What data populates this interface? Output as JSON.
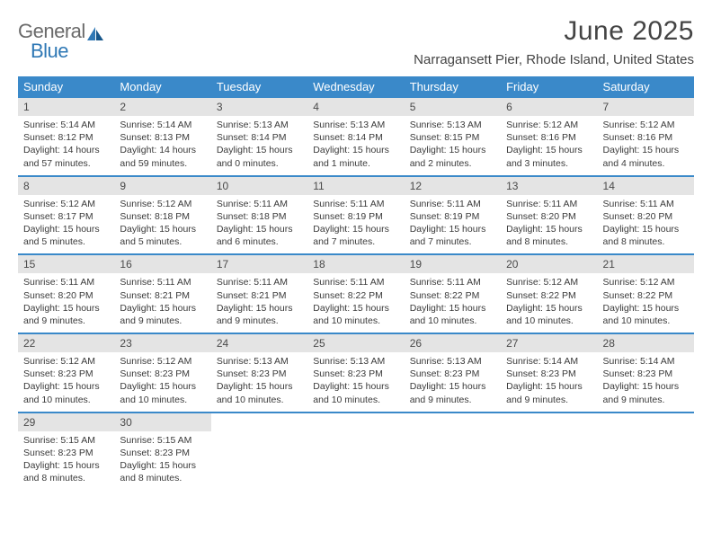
{
  "brand": {
    "part1": "General",
    "part2": "Blue"
  },
  "title": "June 2025",
  "location": "Narragansett Pier, Rhode Island, United States",
  "colors": {
    "header_bg": "#3a89c9",
    "daynum_bg": "#e4e4e4",
    "row_border": "#3a89c9",
    "text": "#3a3a3a",
    "logo_gray": "#6a6a6a",
    "logo_blue": "#2f78b5"
  },
  "weekdays": [
    "Sunday",
    "Monday",
    "Tuesday",
    "Wednesday",
    "Thursday",
    "Friday",
    "Saturday"
  ],
  "weeks": [
    [
      {
        "n": "1",
        "sr": "5:14 AM",
        "ss": "8:12 PM",
        "dl": "14 hours and 57 minutes."
      },
      {
        "n": "2",
        "sr": "5:14 AM",
        "ss": "8:13 PM",
        "dl": "14 hours and 59 minutes."
      },
      {
        "n": "3",
        "sr": "5:13 AM",
        "ss": "8:14 PM",
        "dl": "15 hours and 0 minutes."
      },
      {
        "n": "4",
        "sr": "5:13 AM",
        "ss": "8:14 PM",
        "dl": "15 hours and 1 minute."
      },
      {
        "n": "5",
        "sr": "5:13 AM",
        "ss": "8:15 PM",
        "dl": "15 hours and 2 minutes."
      },
      {
        "n": "6",
        "sr": "5:12 AM",
        "ss": "8:16 PM",
        "dl": "15 hours and 3 minutes."
      },
      {
        "n": "7",
        "sr": "5:12 AM",
        "ss": "8:16 PM",
        "dl": "15 hours and 4 minutes."
      }
    ],
    [
      {
        "n": "8",
        "sr": "5:12 AM",
        "ss": "8:17 PM",
        "dl": "15 hours and 5 minutes."
      },
      {
        "n": "9",
        "sr": "5:12 AM",
        "ss": "8:18 PM",
        "dl": "15 hours and 5 minutes."
      },
      {
        "n": "10",
        "sr": "5:11 AM",
        "ss": "8:18 PM",
        "dl": "15 hours and 6 minutes."
      },
      {
        "n": "11",
        "sr": "5:11 AM",
        "ss": "8:19 PM",
        "dl": "15 hours and 7 minutes."
      },
      {
        "n": "12",
        "sr": "5:11 AM",
        "ss": "8:19 PM",
        "dl": "15 hours and 7 minutes."
      },
      {
        "n": "13",
        "sr": "5:11 AM",
        "ss": "8:20 PM",
        "dl": "15 hours and 8 minutes."
      },
      {
        "n": "14",
        "sr": "5:11 AM",
        "ss": "8:20 PM",
        "dl": "15 hours and 8 minutes."
      }
    ],
    [
      {
        "n": "15",
        "sr": "5:11 AM",
        "ss": "8:20 PM",
        "dl": "15 hours and 9 minutes."
      },
      {
        "n": "16",
        "sr": "5:11 AM",
        "ss": "8:21 PM",
        "dl": "15 hours and 9 minutes."
      },
      {
        "n": "17",
        "sr": "5:11 AM",
        "ss": "8:21 PM",
        "dl": "15 hours and 9 minutes."
      },
      {
        "n": "18",
        "sr": "5:11 AM",
        "ss": "8:22 PM",
        "dl": "15 hours and 10 minutes."
      },
      {
        "n": "19",
        "sr": "5:11 AM",
        "ss": "8:22 PM",
        "dl": "15 hours and 10 minutes."
      },
      {
        "n": "20",
        "sr": "5:12 AM",
        "ss": "8:22 PM",
        "dl": "15 hours and 10 minutes."
      },
      {
        "n": "21",
        "sr": "5:12 AM",
        "ss": "8:22 PM",
        "dl": "15 hours and 10 minutes."
      }
    ],
    [
      {
        "n": "22",
        "sr": "5:12 AM",
        "ss": "8:23 PM",
        "dl": "15 hours and 10 minutes."
      },
      {
        "n": "23",
        "sr": "5:12 AM",
        "ss": "8:23 PM",
        "dl": "15 hours and 10 minutes."
      },
      {
        "n": "24",
        "sr": "5:13 AM",
        "ss": "8:23 PM",
        "dl": "15 hours and 10 minutes."
      },
      {
        "n": "25",
        "sr": "5:13 AM",
        "ss": "8:23 PM",
        "dl": "15 hours and 10 minutes."
      },
      {
        "n": "26",
        "sr": "5:13 AM",
        "ss": "8:23 PM",
        "dl": "15 hours and 9 minutes."
      },
      {
        "n": "27",
        "sr": "5:14 AM",
        "ss": "8:23 PM",
        "dl": "15 hours and 9 minutes."
      },
      {
        "n": "28",
        "sr": "5:14 AM",
        "ss": "8:23 PM",
        "dl": "15 hours and 9 minutes."
      }
    ],
    [
      {
        "n": "29",
        "sr": "5:15 AM",
        "ss": "8:23 PM",
        "dl": "15 hours and 8 minutes."
      },
      {
        "n": "30",
        "sr": "5:15 AM",
        "ss": "8:23 PM",
        "dl": "15 hours and 8 minutes."
      },
      null,
      null,
      null,
      null,
      null
    ]
  ],
  "labels": {
    "sunrise": "Sunrise:",
    "sunset": "Sunset:",
    "daylight": "Daylight:"
  }
}
